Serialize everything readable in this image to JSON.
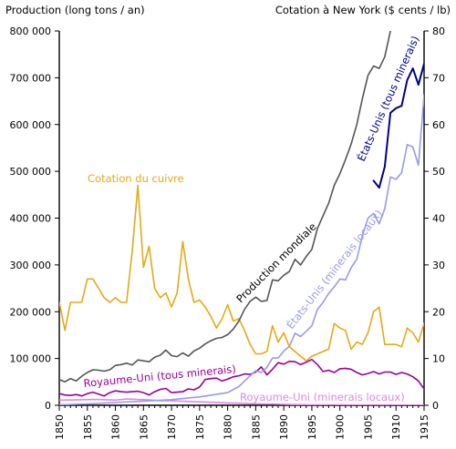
{
  "chart_data": {
    "type": "line",
    "ylabel_left": "Production (long tons / an)",
    "ylabel_right": "Cotation à New York ($ cents / lb)",
    "ylim_left": [
      0,
      800000
    ],
    "ylim_right": [
      0,
      80
    ],
    "xlim": [
      1850,
      1915
    ],
    "y_ticks_left": [
      "0",
      "100 000",
      "200 000",
      "300 000",
      "400 000",
      "500 000",
      "600 000",
      "700 000",
      "800 000"
    ],
    "y_ticks_right": [
      "0",
      "10",
      "20",
      "30",
      "40",
      "50",
      "60",
      "70",
      "80"
    ],
    "x_ticks": [
      "1850",
      "1855",
      "1860",
      "1865",
      "1870",
      "1875",
      "1880",
      "1885",
      "1890",
      "1895",
      "1900",
      "1905",
      "1910",
      "1915"
    ],
    "grid": false,
    "series": [
      {
        "name": "Production mondiale",
        "axis": "left",
        "color": "#555555",
        "years": [
          1850,
          1851,
          1852,
          1853,
          1854,
          1855,
          1856,
          1857,
          1858,
          1859,
          1860,
          1861,
          1862,
          1863,
          1864,
          1865,
          1866,
          1867,
          1868,
          1869,
          1870,
          1871,
          1872,
          1873,
          1874,
          1875,
          1876,
          1877,
          1878,
          1879,
          1880,
          1881,
          1882,
          1883,
          1884,
          1885,
          1886,
          1887,
          1888,
          1889,
          1890,
          1891,
          1892,
          1893,
          1894,
          1895,
          1896,
          1897,
          1898,
          1899,
          1900,
          1901,
          1902,
          1903,
          1904,
          1905,
          1906,
          1907,
          1908,
          1909
        ],
        "values": [
          55000,
          50000,
          57000,
          52000,
          62000,
          70000,
          76000,
          75000,
          73000,
          76000,
          85000,
          87000,
          90000,
          86000,
          97000,
          95000,
          93000,
          103000,
          107000,
          118000,
          106000,
          104000,
          112000,
          105000,
          116000,
          122000,
          131000,
          138000,
          143000,
          145000,
          151000,
          163000,
          180000,
          205000,
          222000,
          231000,
          222000,
          224000,
          268000,
          266000,
          278000,
          286000,
          312000,
          300000,
          318000,
          333000,
          378000,
          405000,
          432000,
          470000,
          495000,
          525000,
          558000,
          600000,
          655000,
          705000,
          725000,
          720000,
          745000,
          800000
        ]
      },
      {
        "name": "États-Unis (tous minerais)",
        "axis": "left",
        "color": "#00008b",
        "years": [
          1906,
          1907,
          1908,
          1909,
          1910,
          1911,
          1912,
          1913,
          1914,
          1915
        ],
        "values": [
          480000,
          465000,
          510000,
          625000,
          635000,
          640000,
          695000,
          720000,
          685000,
          730000
        ]
      },
      {
        "name": "États-Unis (minerais locaux)",
        "axis": "left",
        "color": "#9999ee",
        "years": [
          1850,
          1855,
          1860,
          1865,
          1870,
          1875,
          1880,
          1882,
          1884,
          1885,
          1886,
          1887,
          1888,
          1889,
          1890,
          1891,
          1892,
          1893,
          1894,
          1895,
          1896,
          1897,
          1898,
          1899,
          1900,
          1901,
          1902,
          1903,
          1904,
          1905,
          1906,
          1907,
          1908,
          1909,
          1910,
          1911,
          1912,
          1913,
          1914,
          1915
        ],
        "values": [
          1000,
          3000,
          6000,
          9000,
          12000,
          18000,
          27000,
          40000,
          63000,
          74000,
          70000,
          81000,
          101000,
          101000,
          116000,
          126000,
          154000,
          147000,
          158000,
          170000,
          205000,
          220000,
          239000,
          253000,
          270000,
          268000,
          294000,
          312000,
          362000,
          400000,
          410000,
          388000,
          420000,
          488000,
          483000,
          497000,
          557000,
          552000,
          513000,
          663000
        ]
      },
      {
        "name": "Royaume-Uni (tous minerais)",
        "axis": "left",
        "color": "#990099",
        "years": [
          1850,
          1851,
          1852,
          1853,
          1854,
          1855,
          1856,
          1857,
          1858,
          1859,
          1860,
          1861,
          1862,
          1863,
          1864,
          1865,
          1866,
          1867,
          1868,
          1869,
          1870,
          1871,
          1872,
          1873,
          1874,
          1875,
          1876,
          1877,
          1878,
          1879,
          1880,
          1881,
          1882,
          1883,
          1884,
          1885,
          1886,
          1887,
          1888,
          1889,
          1890,
          1891,
          1892,
          1893,
          1894,
          1895,
          1896,
          1897,
          1898,
          1899,
          1900,
          1901,
          1902,
          1903,
          1904,
          1905,
          1906,
          1907,
          1908,
          1909,
          1910,
          1911,
          1912,
          1913,
          1914,
          1915
        ],
        "values": [
          25000,
          22000,
          21000,
          23000,
          20000,
          25000,
          28000,
          24000,
          20000,
          27000,
          31000,
          29000,
          28000,
          29000,
          30000,
          27000,
          22000,
          29000,
          34000,
          36000,
          27000,
          28000,
          29000,
          35000,
          33000,
          39000,
          55000,
          57000,
          58000,
          52000,
          56000,
          61000,
          63000,
          67000,
          66000,
          71000,
          82000,
          65000,
          77000,
          91000,
          88000,
          94000,
          93000,
          87000,
          92000,
          98000,
          87000,
          72000,
          75000,
          70000,
          78000,
          79000,
          77000,
          70000,
          65000,
          68000,
          72000,
          67000,
          71000,
          71000,
          66000,
          70000,
          67000,
          61000,
          52000,
          35000
        ]
      },
      {
        "name": "Royaume-Uni (minerais locaux)",
        "axis": "left",
        "color": "#dd88dd",
        "years": [
          1850,
          1853,
          1856,
          1858,
          1860,
          1862,
          1864,
          1866,
          1868,
          1870,
          1872,
          1874,
          1876,
          1878,
          1880,
          1882,
          1884,
          1886,
          1888,
          1890,
          1892,
          1895,
          1900,
          1905,
          1910,
          1915
        ],
        "values": [
          11000,
          11500,
          12500,
          12000,
          11000,
          13500,
          12500,
          11500,
          10000,
          9500,
          8500,
          7500,
          7000,
          6000,
          5000,
          4500,
          3500,
          3000,
          2500,
          2000,
          1500,
          1000,
          700,
          600,
          500,
          300
        ]
      },
      {
        "name": "Cotation du cuivre",
        "axis": "right",
        "color": "#e6a817",
        "years": [
          1850,
          1851,
          1852,
          1853,
          1854,
          1855,
          1856,
          1857,
          1858,
          1859,
          1860,
          1861,
          1862,
          1863,
          1864,
          1865,
          1866,
          1867,
          1868,
          1869,
          1870,
          1871,
          1872,
          1873,
          1874,
          1875,
          1876,
          1877,
          1878,
          1879,
          1880,
          1881,
          1882,
          1883,
          1884,
          1885,
          1886,
          1887,
          1888,
          1889,
          1890,
          1891,
          1892,
          1893,
          1894,
          1895,
          1896,
          1897,
          1898,
          1899,
          1900,
          1901,
          1902,
          1903,
          1904,
          1905,
          1906,
          1907,
          1908,
          1909,
          1910,
          1911,
          1912,
          1913,
          1914,
          1915
        ],
        "values": [
          22,
          16,
          22,
          22,
          22,
          27,
          27,
          25,
          23,
          22,
          23,
          22,
          22,
          33,
          47,
          29.5,
          34,
          25,
          23,
          24,
          21,
          24,
          35,
          27,
          22,
          22.5,
          21,
          19,
          16.5,
          18.5,
          21.5,
          18,
          18.5,
          16,
          13,
          11,
          11,
          11.5,
          17,
          13.5,
          15.5,
          12.5,
          11.5,
          10.5,
          9.5,
          10.5,
          11,
          11.5,
          12,
          17.5,
          16.5,
          16,
          12,
          13.5,
          13,
          15.5,
          20,
          21,
          13,
          13,
          13,
          12.5,
          16.5,
          15.5,
          13.5,
          17.5
        ]
      }
    ],
    "annotations": [
      {
        "text": "Cotation du cuivre",
        "series": 5
      },
      {
        "text": "Production mondiale",
        "series": 0
      },
      {
        "text": "États-Unis (tous minerais)",
        "series": 1
      },
      {
        "text": "États-Unis (minerais locaux)",
        "series": 2
      },
      {
        "text": "Royaume-Uni (tous minerais)",
        "series": 3
      },
      {
        "text": "Royaume-Uni (minerais locaux)",
        "series": 4
      }
    ]
  }
}
